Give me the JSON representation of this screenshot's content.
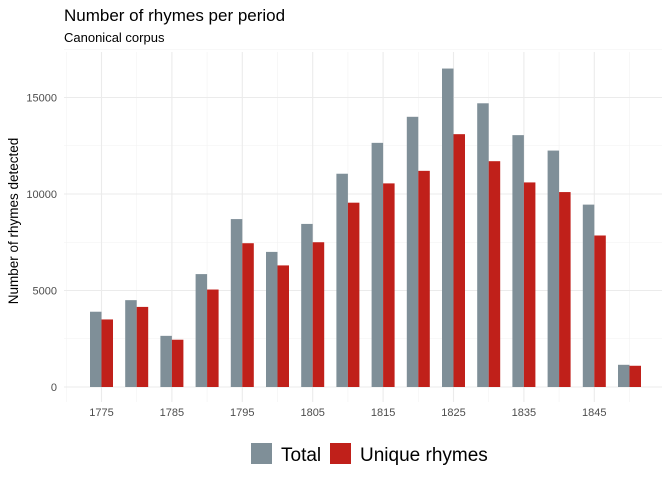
{
  "chart_data": {
    "type": "bar",
    "title": "Number of rhymes per period",
    "subtitle": "Canonical corpus",
    "xlabel": "",
    "ylabel": "Number of rhymes detected",
    "x": [
      1775,
      1780,
      1785,
      1790,
      1795,
      1800,
      1805,
      1810,
      1815,
      1820,
      1825,
      1830,
      1835,
      1840,
      1845,
      1850
    ],
    "x_tick_labels": [
      "1775",
      "1785",
      "1795",
      "1805",
      "1815",
      "1825",
      "1835",
      "1845"
    ],
    "x_tick_values": [
      1775,
      1785,
      1795,
      1805,
      1815,
      1825,
      1835,
      1845
    ],
    "y_ticks": [
      0,
      5000,
      10000,
      15000
    ],
    "y_tick_labels": [
      "0",
      "5000",
      "10000",
      "15000"
    ],
    "ylim": [
      0,
      17500
    ],
    "grid": true,
    "legend_position": "bottom",
    "series": [
      {
        "name": "Total",
        "color": "#7f8f98",
        "values": [
          3900,
          4500,
          2650,
          5850,
          8700,
          7000,
          8450,
          11050,
          12650,
          14000,
          16500,
          14700,
          13050,
          12250,
          9450,
          1150
        ]
      },
      {
        "name": "Unique rhymes",
        "color": "#c0201a",
        "values": [
          3500,
          4150,
          2450,
          5050,
          7450,
          6300,
          7500,
          9550,
          10550,
          11200,
          13100,
          11700,
          10600,
          10100,
          7850,
          1100
        ]
      }
    ]
  }
}
